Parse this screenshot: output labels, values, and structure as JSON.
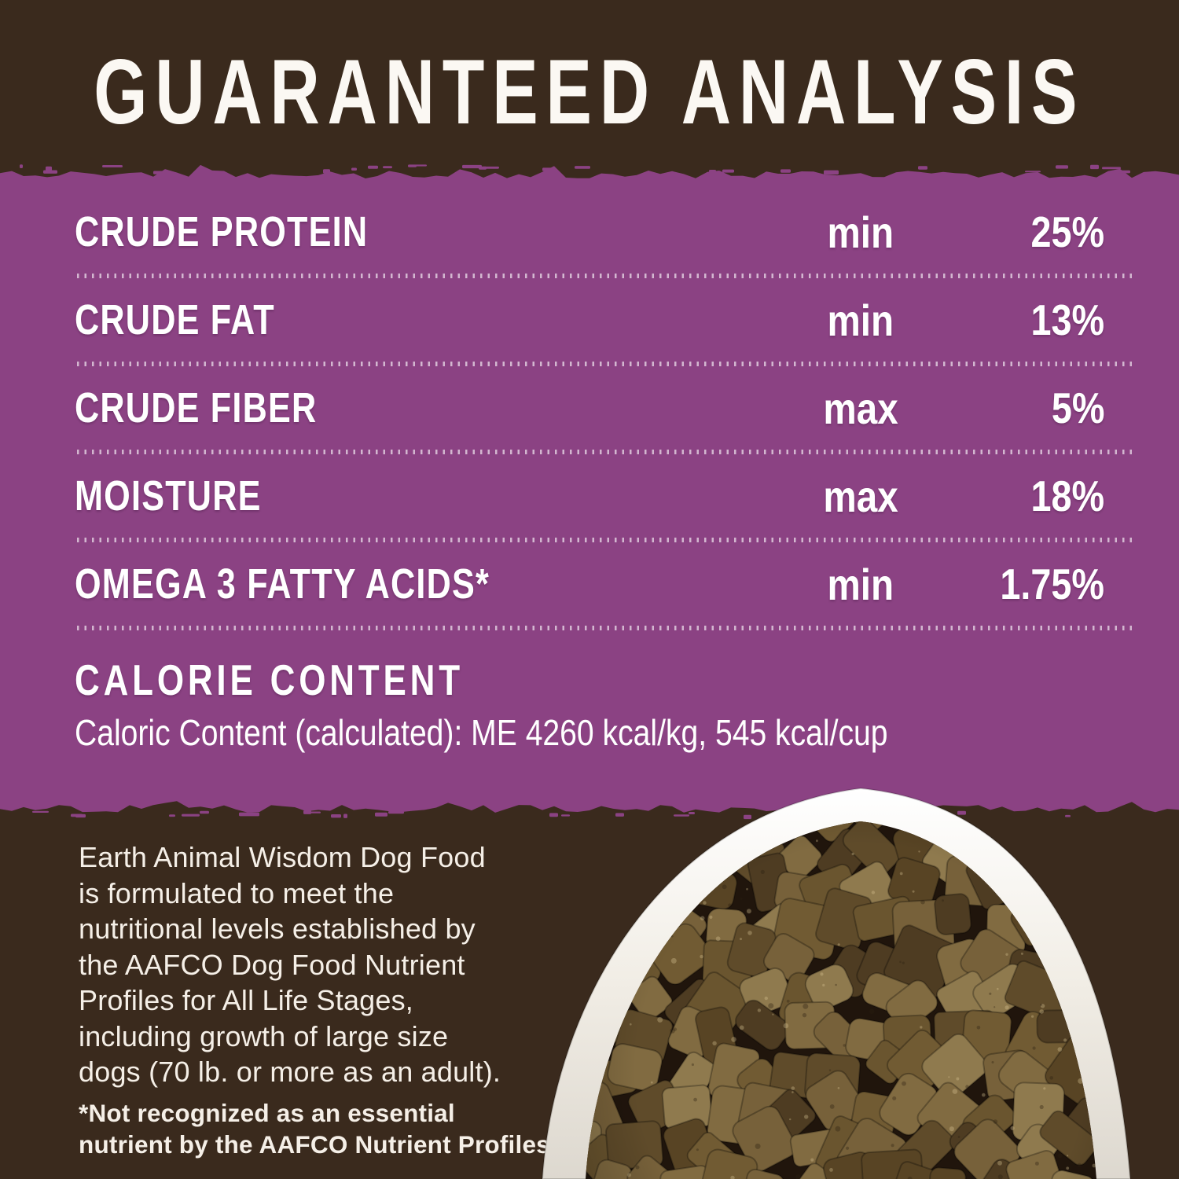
{
  "header": {
    "title": "GUARANTEED ANALYSIS"
  },
  "analysis": {
    "rows": [
      {
        "label": "CRUDE PROTEIN",
        "qualifier": "min",
        "value": "25%"
      },
      {
        "label": "CRUDE FAT",
        "qualifier": "min",
        "value": "13%"
      },
      {
        "label": "CRUDE FIBER",
        "qualifier": "max",
        "value": "5%"
      },
      {
        "label": "MOISTURE",
        "qualifier": "max",
        "value": "18%"
      },
      {
        "label": "OMEGA 3 FATTY ACIDS*",
        "qualifier": "min",
        "value": "1.75%"
      }
    ],
    "calorie_heading": "CALORIE CONTENT",
    "calorie_line": "Caloric Content (calculated): ME 4260 kcal/kg, 545 kcal/cup"
  },
  "info": {
    "paragraph_lines": [
      "Earth Animal Wisdom Dog Food",
      "is formulated to meet the",
      "nutritional levels established by",
      "the AAFCO Dog Food Nutrient",
      "Profiles for All Life Stages,",
      "including growth of large size",
      "dogs (70 lb. or more as an adult)."
    ],
    "footnote_lines": [
      "*Not recognized as an essential",
      "nutrient by the AAFCO Nutrient Profiles"
    ]
  },
  "photo": {
    "alt": "Bowl of dog food kibble"
  },
  "colors": {
    "background_brown": "#3a2a1d",
    "panel_purple": "#8b4283",
    "text_white": "#ffffff",
    "off_white": "#f5efe7"
  }
}
